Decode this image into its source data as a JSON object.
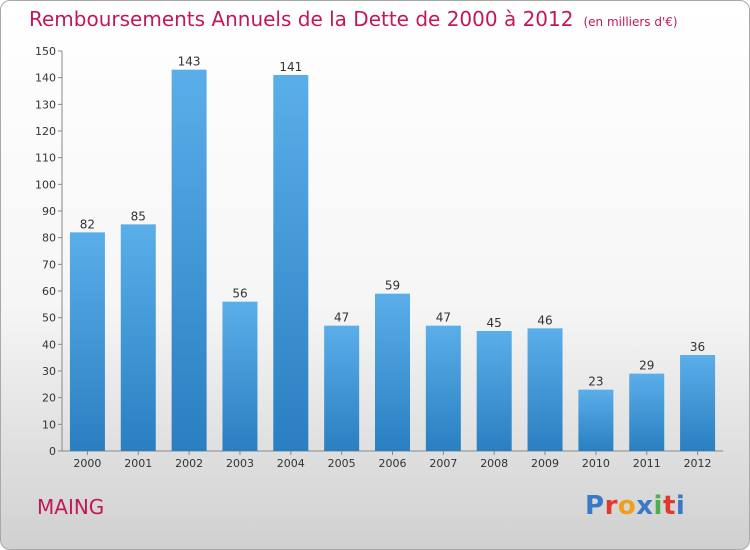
{
  "header": {
    "title": "Remboursements Annuels de la Dette de 2000 à 2012",
    "unit": "(en milliers d'€)"
  },
  "footer": {
    "commune": "MAING",
    "logo_text": "Proxiti"
  },
  "colors": {
    "title": "#c2185b",
    "bar_light": "#5aaee9",
    "bar_dark": "#2a7fc1",
    "logo_letters": [
      "#3a78c8",
      "#e03a2e",
      "#f0a018",
      "#3a78c8",
      "#4caf50",
      "#e03a2e",
      "#3a78c8"
    ]
  },
  "chart_data": {
    "type": "bar",
    "categories": [
      "2000",
      "2001",
      "2002",
      "2003",
      "2004",
      "2005",
      "2006",
      "2007",
      "2008",
      "2009",
      "2010",
      "2011",
      "2012"
    ],
    "values": [
      82,
      85,
      143,
      56,
      141,
      47,
      59,
      47,
      45,
      46,
      23,
      29,
      36
    ],
    "ylim": [
      0,
      150
    ],
    "yticks": [
      0,
      10,
      20,
      30,
      40,
      50,
      60,
      70,
      80,
      90,
      100,
      110,
      120,
      130,
      140,
      150
    ],
    "grid": false,
    "legend": "none",
    "data_labels": true
  }
}
